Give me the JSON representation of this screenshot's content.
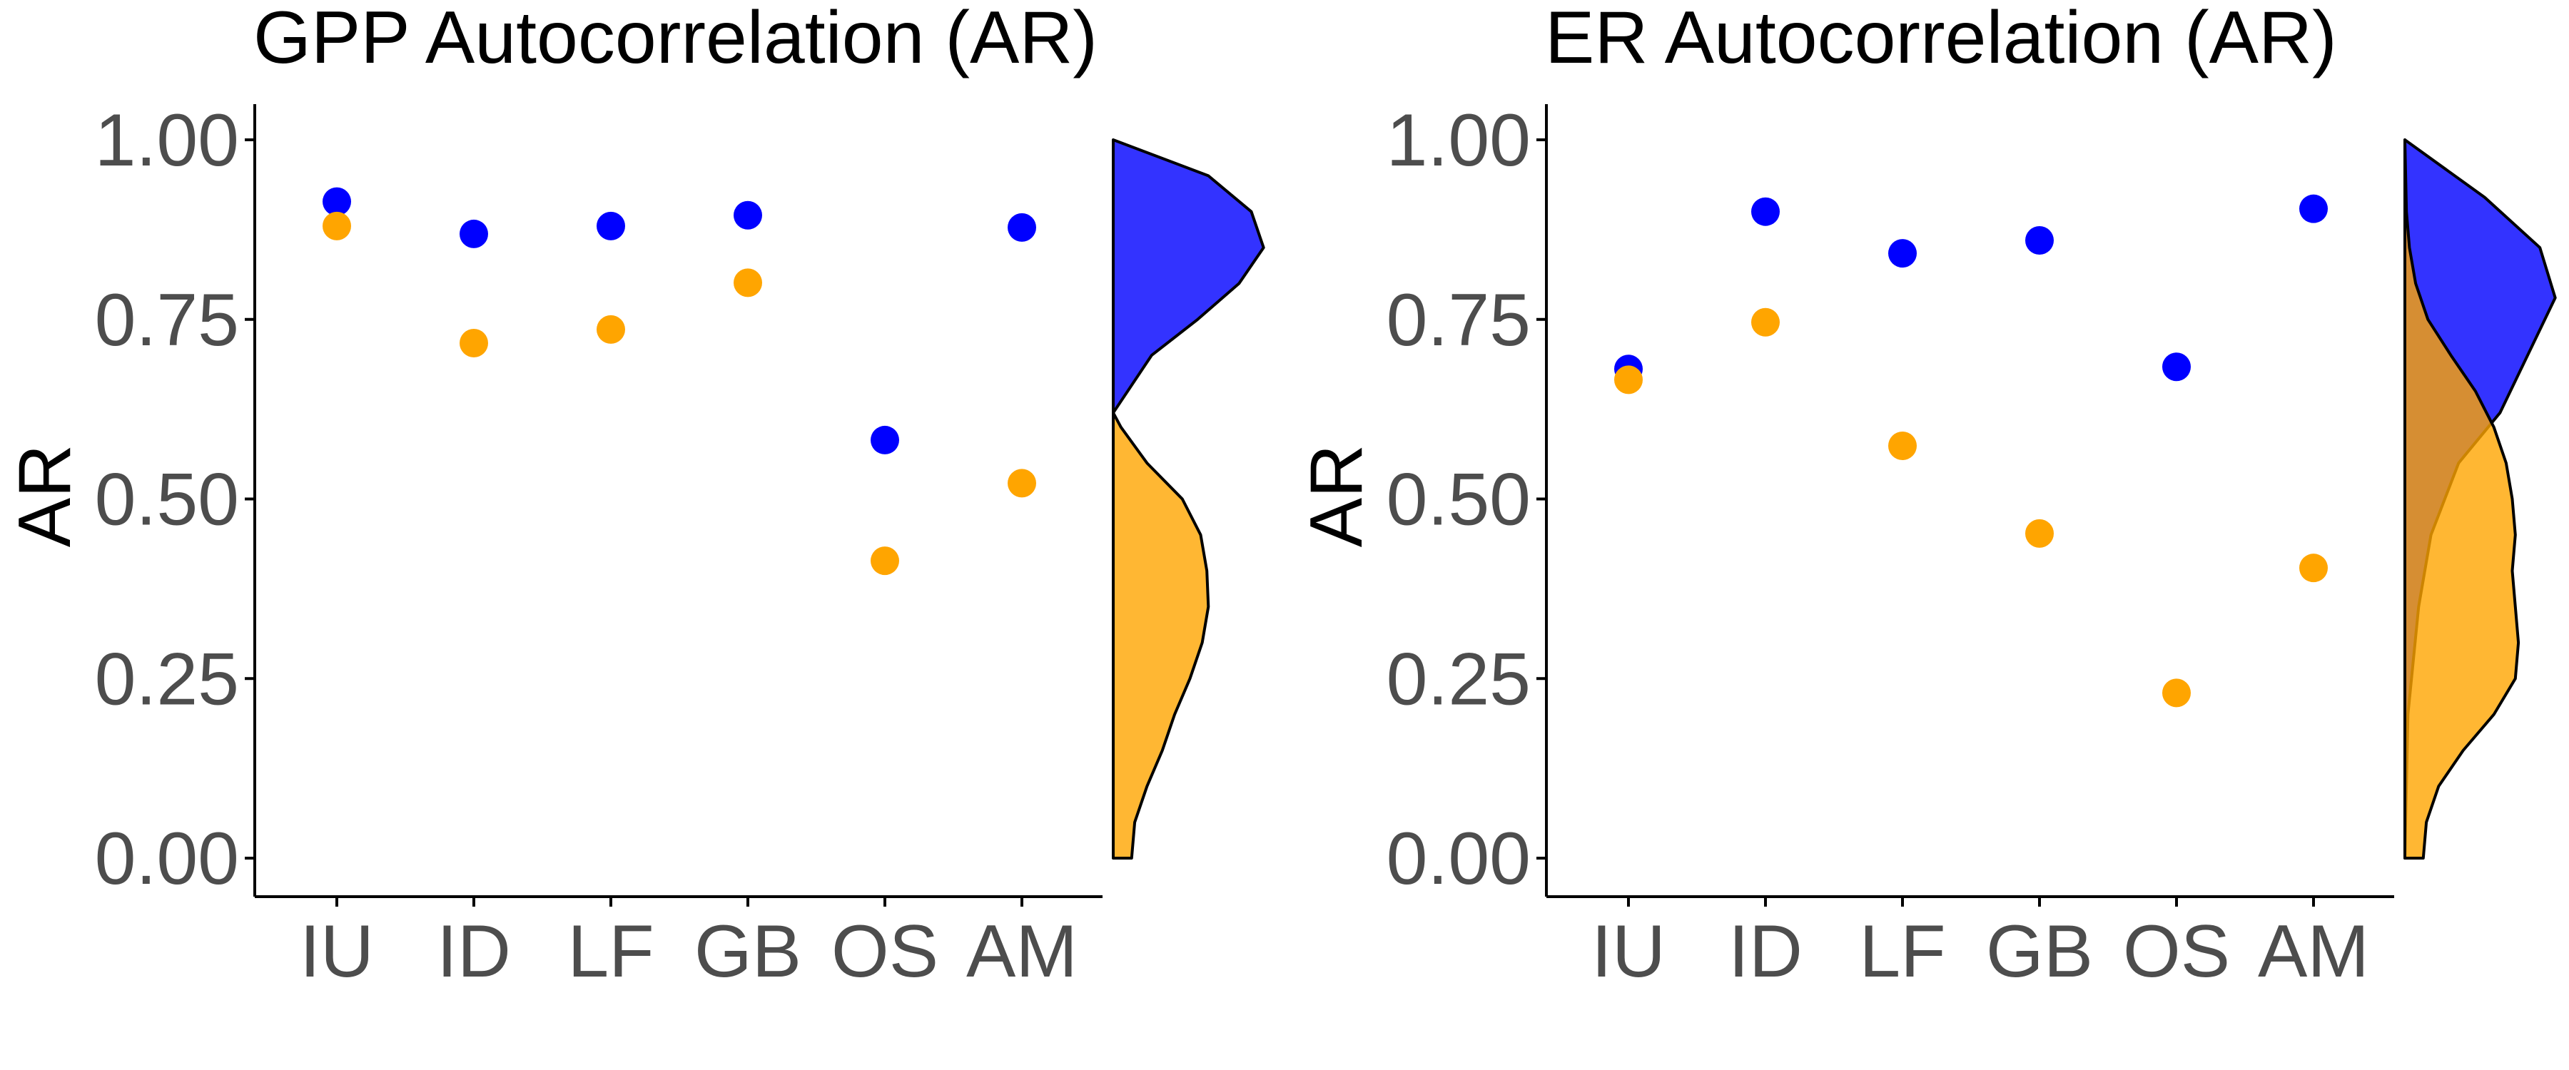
{
  "colors": {
    "series_a": "#0000ff",
    "series_b": "#ffa500",
    "density_a_fill": "#0000ff",
    "density_b_fill": "#ffa500",
    "axis": "#000000",
    "tick_text": "#4d4d4d"
  },
  "chart_data": [
    {
      "type": "scatter",
      "title": "GPP Autocorrelation (AR)",
      "ylabel": "AR",
      "xlabel": "",
      "categories": [
        "IU",
        "ID",
        "LF",
        "GB",
        "OS",
        "AM"
      ],
      "ylim": [
        0,
        1
      ],
      "yticks": [
        "0.00",
        "0.25",
        "0.50",
        "0.75",
        "1.00"
      ],
      "grid": false,
      "legend": "none",
      "series": [
        {
          "color": "#0000ff",
          "values": [
            0.914,
            0.869,
            0.88,
            0.895,
            0.582,
            0.878
          ]
        },
        {
          "color": "#ffa500",
          "values": [
            0.88,
            0.717,
            0.736,
            0.801,
            0.414,
            0.522
          ]
        }
      ],
      "marginal_density": [
        {
          "color": "#0000ff",
          "y": [
            0.62,
            0.7,
            0.75,
            0.8,
            0.85,
            0.9,
            0.95,
            1.0
          ],
          "density": [
            0.0,
            0.25,
            0.55,
            0.82,
            0.98,
            0.9,
            0.62,
            0.0
          ]
        },
        {
          "color": "#ffa500",
          "y": [
            0.0,
            0.05,
            0.1,
            0.15,
            0.2,
            0.25,
            0.3,
            0.35,
            0.4,
            0.45,
            0.5,
            0.55,
            0.6,
            0.62
          ],
          "density": [
            0.12,
            0.14,
            0.22,
            0.32,
            0.4,
            0.5,
            0.58,
            0.62,
            0.61,
            0.57,
            0.45,
            0.22,
            0.05,
            0.0
          ]
        }
      ]
    },
    {
      "type": "scatter",
      "title": "ER Autocorrelation (AR)",
      "ylabel": "AR",
      "xlabel": "",
      "categories": [
        "IU",
        "ID",
        "LF",
        "GB",
        "OS",
        "AM"
      ],
      "ylim": [
        0,
        1
      ],
      "yticks": [
        "0.00",
        "0.25",
        "0.50",
        "0.75",
        "1.00"
      ],
      "grid": false,
      "legend": "none",
      "series": [
        {
          "color": "#0000ff",
          "values": [
            0.681,
            0.9,
            0.842,
            0.86,
            0.684,
            0.904
          ]
        },
        {
          "color": "#ffa500",
          "values": [
            0.666,
            0.746,
            0.574,
            0.452,
            0.23,
            0.404
          ]
        }
      ],
      "marginal_density": [
        {
          "color": "#0000ff",
          "y": [
            0.0,
            0.2,
            0.35,
            0.45,
            0.55,
            0.62,
            0.7,
            0.78,
            0.85,
            0.92,
            1.0
          ],
          "density": [
            0.0,
            0.02,
            0.09,
            0.17,
            0.35,
            0.62,
            0.8,
            0.98,
            0.88,
            0.52,
            0.0
          ]
        },
        {
          "color": "#ffa500",
          "y": [
            0.0,
            0.05,
            0.1,
            0.15,
            0.2,
            0.25,
            0.3,
            0.35,
            0.4,
            0.45,
            0.5,
            0.55,
            0.6,
            0.65,
            0.7,
            0.75,
            0.8,
            0.85,
            0.9,
            1.0
          ],
          "density": [
            0.12,
            0.14,
            0.22,
            0.38,
            0.58,
            0.72,
            0.74,
            0.72,
            0.7,
            0.72,
            0.7,
            0.66,
            0.58,
            0.46,
            0.3,
            0.15,
            0.07,
            0.03,
            0.01,
            0.0
          ]
        }
      ]
    }
  ]
}
